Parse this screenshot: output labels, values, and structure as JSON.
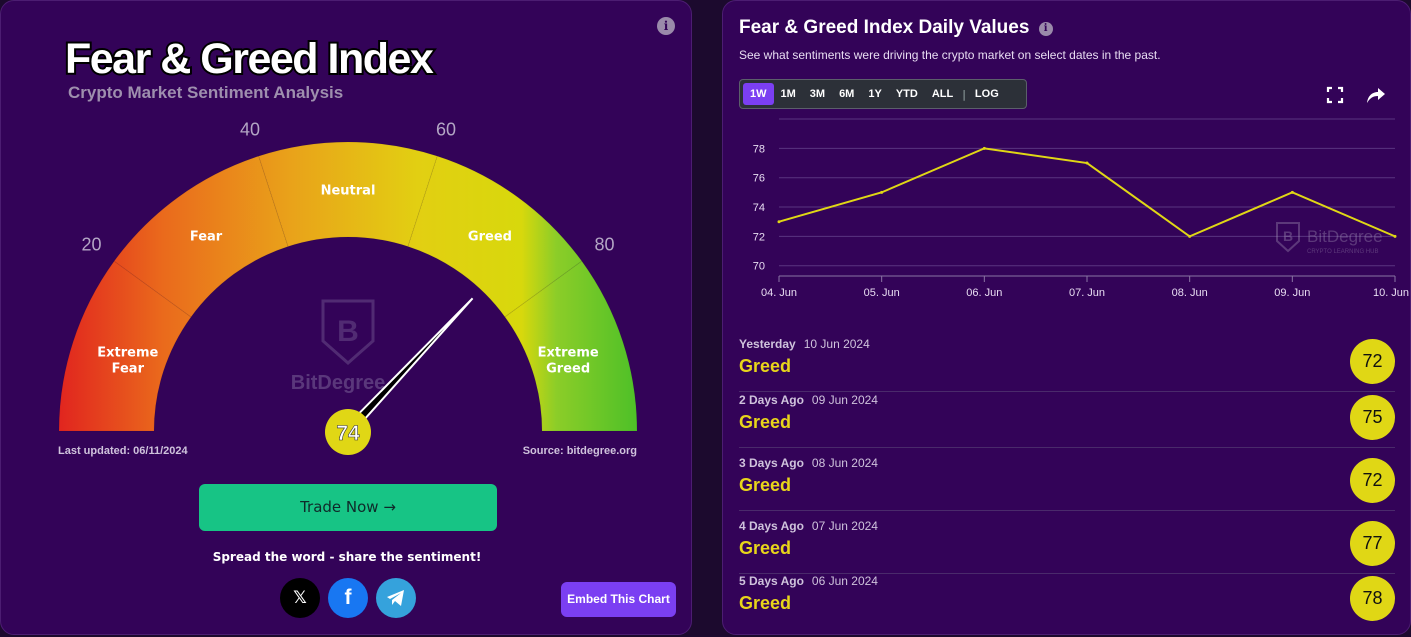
{
  "left": {
    "title": "Fear & Greed Index",
    "subtitle": "Crypto Market Sentiment Analysis",
    "gauge": {
      "value": 74,
      "ticks": [
        "20",
        "40",
        "60",
        "80"
      ],
      "segments": [
        {
          "label_lines": [
            "Extreme",
            "Fear"
          ]
        },
        {
          "label_lines": [
            "Fear"
          ]
        },
        {
          "label_lines": [
            "Neutral"
          ]
        },
        {
          "label_lines": [
            "Greed"
          ]
        },
        {
          "label_lines": [
            "Extreme",
            "Greed"
          ]
        }
      ],
      "watermark": "BitDegree"
    },
    "last_updated": "Last updated: 06/11/2024",
    "source": "Source: bitdegree.org",
    "trade_button": "Trade Now →",
    "share_text": "Spread the word - share the sentiment!",
    "social": [
      "x-icon",
      "facebook-icon",
      "telegram-icon"
    ],
    "embed_button": "Embed This Chart"
  },
  "right": {
    "title": "Fear & Greed Index Daily Values",
    "description": "See what sentiments were driving the crypto market on select dates in the past.",
    "ranges": [
      "1W",
      "1M",
      "3M",
      "6M",
      "1Y",
      "YTD",
      "ALL"
    ],
    "active_range": "1W",
    "log_label": "LOG",
    "watermark": "BitDegree",
    "watermark_sub": "CRYPTO LEARNING HUB",
    "history": [
      {
        "label": "Yesterday",
        "date": "10 Jun 2024",
        "classification": "Greed",
        "value": "72"
      },
      {
        "label": "2 Days Ago",
        "date": "09 Jun 2024",
        "classification": "Greed",
        "value": "75"
      },
      {
        "label": "3 Days Ago",
        "date": "08 Jun 2024",
        "classification": "Greed",
        "value": "72"
      },
      {
        "label": "4 Days Ago",
        "date": "07 Jun 2024",
        "classification": "Greed",
        "value": "77"
      },
      {
        "label": "5 Days Ago",
        "date": "06 Jun 2024",
        "classification": "Greed",
        "value": "78"
      }
    ]
  },
  "chart_data": {
    "type": "line",
    "x": [
      "04. Jun",
      "05. Jun",
      "06. Jun",
      "07. Jun",
      "08. Jun",
      "09. Jun",
      "10. Jun"
    ],
    "series": [
      {
        "values": [
          73,
          75,
          78,
          77,
          72,
          75,
          72
        ]
      }
    ],
    "yticks": [
      "70",
      "72",
      "74",
      "76",
      "78"
    ],
    "ylim": [
      69.3,
      80
    ],
    "grid": true,
    "line_color": "#e0d715"
  }
}
